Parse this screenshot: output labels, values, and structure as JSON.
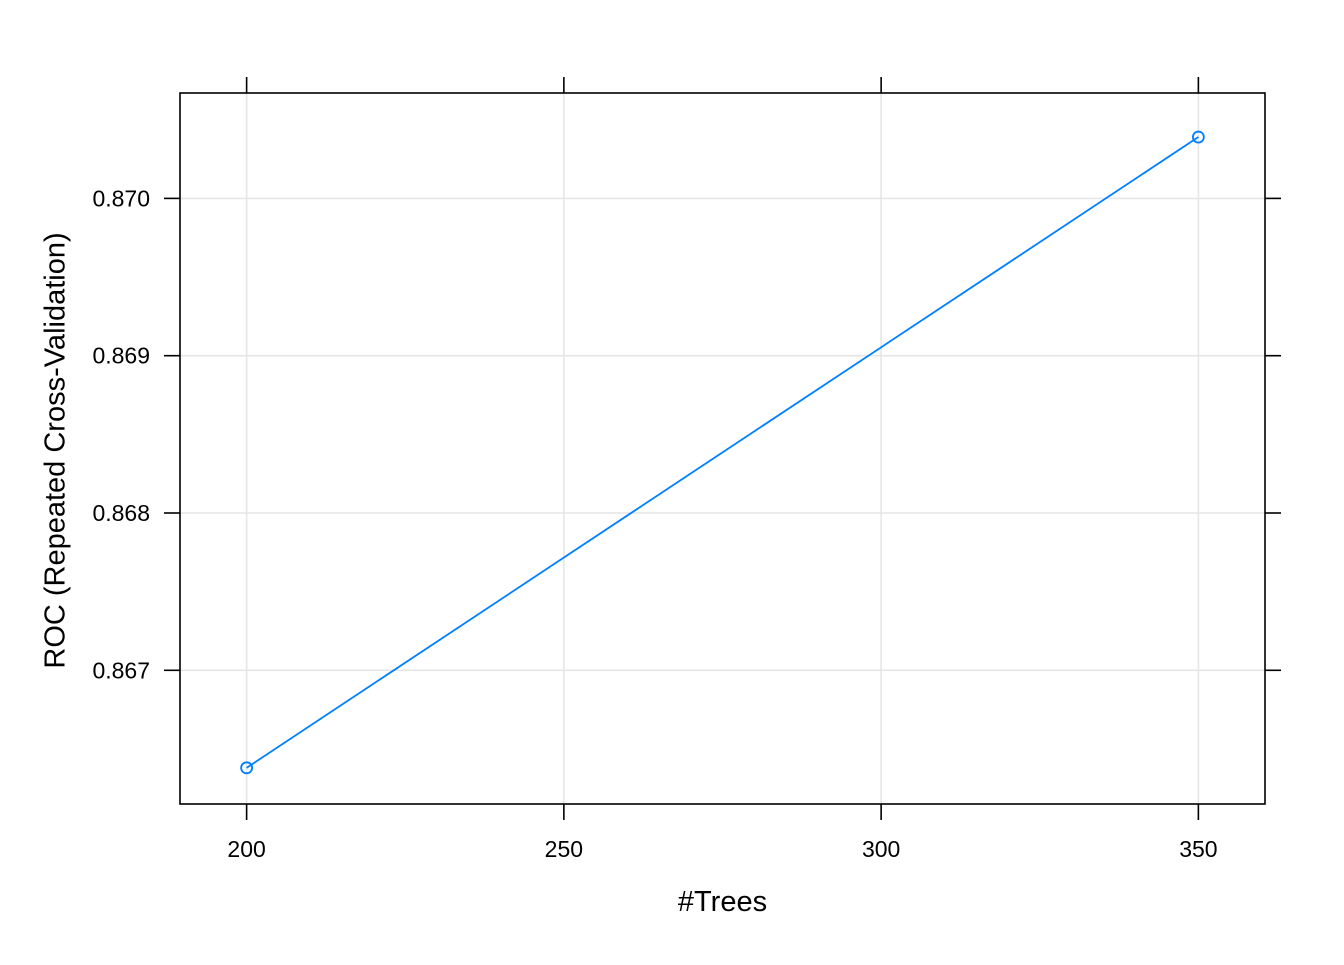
{
  "chart_data": {
    "type": "line",
    "title": "",
    "xlabel": "#Trees",
    "ylabel": "ROC (Repeated Cross-Validation)",
    "x": [
      200,
      350
    ],
    "series": [
      {
        "values": [
          0.86638,
          0.87039
        ]
      }
    ],
    "xlim": [
      189.5,
      360.5
    ],
    "ylim": [
      0.86615,
      0.87067
    ],
    "x_ticks": [
      200,
      250,
      300,
      350
    ],
    "x_tick_labels": [
      "200",
      "250",
      "300",
      "350"
    ],
    "y_ticks": [
      0.867,
      0.868,
      0.869,
      0.87
    ],
    "y_tick_labels": [
      "0.867",
      "0.868",
      "0.869",
      "0.870"
    ],
    "grid": true,
    "legend": "none",
    "marker": "open-circle",
    "colors": {
      "series": "#0080ff",
      "grid": "#e6e6e6",
      "frame": "#000000"
    }
  }
}
